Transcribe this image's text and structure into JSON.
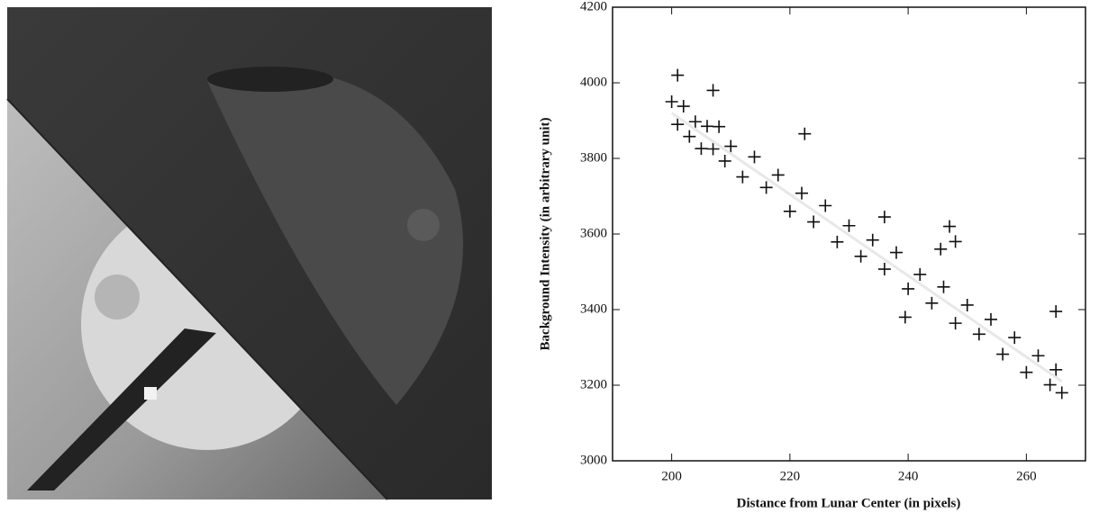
{
  "chart_data": {
    "type": "scatter",
    "xlabel": "Distance from Lunar Center (in pixels)",
    "ylabel": "Background Intensity (in arbitrary unit)",
    "xlim": [
      190,
      270
    ],
    "ylim": [
      3000,
      4200
    ],
    "xticks": [
      200,
      220,
      240,
      260
    ],
    "yticks": [
      3000,
      3200,
      3400,
      3600,
      3800,
      4000,
      4200
    ],
    "series": [
      {
        "style": "markers",
        "color": "#111111",
        "x": [
          200,
          201,
          202,
          203,
          204,
          205,
          206,
          207,
          208,
          209,
          210,
          212,
          214,
          216,
          218,
          220,
          222,
          224,
          226,
          228,
          230,
          232,
          234,
          236,
          238,
          240,
          242,
          244,
          246,
          248,
          250,
          252,
          254,
          256,
          258,
          260,
          262,
          264,
          265,
          266,
          222.5,
          236,
          247,
          245.5,
          248,
          239.5,
          265,
          207,
          201
        ],
        "values": [
          3950,
          3890,
          3938,
          3858,
          3897,
          3826,
          3885,
          3825,
          3884,
          3793,
          3832,
          3751,
          3804,
          3723,
          3756,
          3660,
          3708,
          3632,
          3675,
          3579,
          3622,
          3541,
          3584,
          3507,
          3551,
          3455,
          3493,
          3417,
          3460,
          3364,
          3412,
          3335,
          3374,
          3282,
          3326,
          3234,
          3278,
          3201,
          3241,
          3180,
          3865,
          3645,
          3620,
          3560,
          3580,
          3380,
          3395,
          3980,
          4020
        ]
      },
      {
        "style": "line",
        "color": "#e8e8e8",
        "x": [
          200,
          266
        ],
        "values": [
          3920,
          3210
        ]
      }
    ]
  }
}
